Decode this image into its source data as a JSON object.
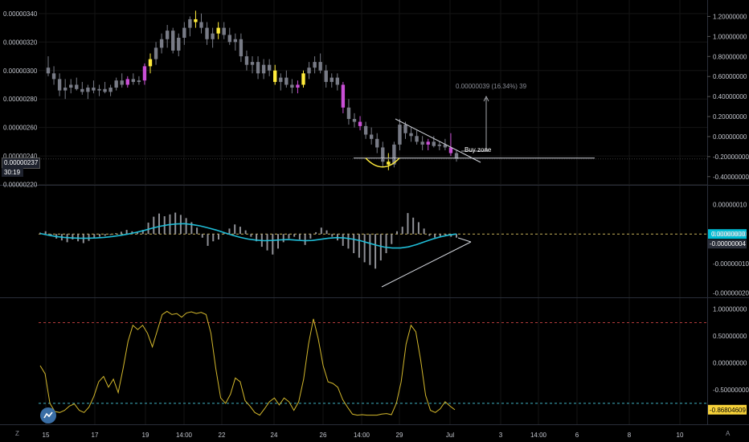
{
  "chart_data": [
    {
      "type": "candlestick",
      "title": "",
      "yticks": [
        "0.00000340",
        "0.00000320",
        "0.00000300",
        "0.00000280",
        "0.00000260",
        "0.00000240",
        "0.00000220"
      ],
      "right_yticks": [
        "1.20000000",
        "1.00000000",
        "0.80000000",
        "0.60000000",
        "0.40000000",
        "0.20000000",
        "0.00000000",
        "-0.20000000",
        "-0.40000000"
      ],
      "ylim": [
        2.22e-06,
        3.45e-06
      ],
      "last_price": "0.00000237",
      "countdown": "30:19",
      "candles": [
        {
          "o": 3.02,
          "h": 3.1,
          "l": 2.96,
          "c": 2.98
        },
        {
          "o": 2.98,
          "h": 3.03,
          "l": 2.9,
          "c": 2.94
        },
        {
          "o": 2.94,
          "h": 2.98,
          "l": 2.82,
          "c": 2.86
        },
        {
          "o": 2.86,
          "h": 2.94,
          "l": 2.8,
          "c": 2.88
        },
        {
          "o": 2.88,
          "h": 2.94,
          "l": 2.84,
          "c": 2.9
        },
        {
          "o": 2.9,
          "h": 2.95,
          "l": 2.86,
          "c": 2.87
        },
        {
          "o": 2.87,
          "h": 2.92,
          "l": 2.83,
          "c": 2.85
        },
        {
          "o": 2.85,
          "h": 2.9,
          "l": 2.8,
          "c": 2.88
        },
        {
          "o": 2.88,
          "h": 2.93,
          "l": 2.84,
          "c": 2.86
        },
        {
          "o": 2.86,
          "h": 2.9,
          "l": 2.82,
          "c": 2.87
        },
        {
          "o": 2.87,
          "h": 2.92,
          "l": 2.84,
          "c": 2.85
        },
        {
          "o": 2.85,
          "h": 2.9,
          "l": 2.82,
          "c": 2.88
        },
        {
          "o": 2.88,
          "h": 2.95,
          "l": 2.86,
          "c": 2.93
        },
        {
          "o": 2.93,
          "h": 2.98,
          "l": 2.88,
          "c": 2.9
        },
        {
          "o": 2.9,
          "h": 2.96,
          "l": 2.88,
          "c": 2.94
        },
        {
          "o": 2.94,
          "h": 2.98,
          "l": 2.9,
          "c": 2.92
        },
        {
          "o": 2.92,
          "h": 2.96,
          "l": 2.9,
          "c": 2.93
        },
        {
          "o": 2.93,
          "h": 3.05,
          "l": 2.9,
          "c": 3.03
        },
        {
          "o": 3.03,
          "h": 3.12,
          "l": 2.98,
          "c": 3.08
        },
        {
          "o": 3.08,
          "h": 3.2,
          "l": 3.04,
          "c": 3.16
        },
        {
          "o": 3.16,
          "h": 3.26,
          "l": 3.12,
          "c": 3.22
        },
        {
          "o": 3.22,
          "h": 3.32,
          "l": 3.16,
          "c": 3.28
        },
        {
          "o": 3.28,
          "h": 3.3,
          "l": 3.12,
          "c": 3.14
        },
        {
          "o": 3.14,
          "h": 3.26,
          "l": 3.1,
          "c": 3.23
        },
        {
          "o": 3.23,
          "h": 3.34,
          "l": 3.18,
          "c": 3.3
        },
        {
          "o": 3.3,
          "h": 3.38,
          "l": 3.24,
          "c": 3.36
        },
        {
          "o": 3.36,
          "h": 3.42,
          "l": 3.3,
          "c": 3.34
        },
        {
          "o": 3.34,
          "h": 3.4,
          "l": 3.26,
          "c": 3.3
        },
        {
          "o": 3.3,
          "h": 3.34,
          "l": 3.18,
          "c": 3.22
        },
        {
          "o": 3.22,
          "h": 3.3,
          "l": 3.16,
          "c": 3.26
        },
        {
          "o": 3.26,
          "h": 3.34,
          "l": 3.22,
          "c": 3.3
        },
        {
          "o": 3.3,
          "h": 3.34,
          "l": 3.22,
          "c": 3.25
        },
        {
          "o": 3.25,
          "h": 3.3,
          "l": 3.18,
          "c": 3.2
        },
        {
          "o": 3.2,
          "h": 3.26,
          "l": 3.14,
          "c": 3.22
        },
        {
          "o": 3.22,
          "h": 3.26,
          "l": 3.06,
          "c": 3.1
        },
        {
          "o": 3.1,
          "h": 3.14,
          "l": 3.0,
          "c": 3.04
        },
        {
          "o": 3.04,
          "h": 3.1,
          "l": 2.98,
          "c": 3.06
        },
        {
          "o": 3.06,
          "h": 3.1,
          "l": 2.94,
          "c": 2.98
        },
        {
          "o": 2.98,
          "h": 3.08,
          "l": 2.94,
          "c": 3.04
        },
        {
          "o": 3.04,
          "h": 3.08,
          "l": 2.96,
          "c": 3.0
        },
        {
          "o": 3.0,
          "h": 3.04,
          "l": 2.9,
          "c": 2.92
        },
        {
          "o": 2.92,
          "h": 2.98,
          "l": 2.86,
          "c": 2.95
        },
        {
          "o": 2.95,
          "h": 3.0,
          "l": 2.88,
          "c": 2.9
        },
        {
          "o": 2.9,
          "h": 2.94,
          "l": 2.84,
          "c": 2.88
        },
        {
          "o": 2.88,
          "h": 2.93,
          "l": 2.84,
          "c": 2.9
        },
        {
          "o": 2.9,
          "h": 3.0,
          "l": 2.88,
          "c": 2.98
        },
        {
          "o": 2.98,
          "h": 3.06,
          "l": 2.94,
          "c": 3.02
        },
        {
          "o": 3.02,
          "h": 3.1,
          "l": 2.98,
          "c": 3.06
        },
        {
          "o": 3.06,
          "h": 3.12,
          "l": 2.98,
          "c": 3.0
        },
        {
          "o": 3.0,
          "h": 3.04,
          "l": 2.88,
          "c": 2.92
        },
        {
          "o": 2.92,
          "h": 2.98,
          "l": 2.88,
          "c": 2.95
        },
        {
          "o": 2.95,
          "h": 2.98,
          "l": 2.86,
          "c": 2.9
        },
        {
          "o": 2.9,
          "h": 2.92,
          "l": 2.7,
          "c": 2.74
        },
        {
          "o": 2.74,
          "h": 2.8,
          "l": 2.62,
          "c": 2.66
        },
        {
          "o": 2.66,
          "h": 2.7,
          "l": 2.6,
          "c": 2.64
        },
        {
          "o": 2.64,
          "h": 2.68,
          "l": 2.58,
          "c": 2.61
        },
        {
          "o": 2.61,
          "h": 2.64,
          "l": 2.52,
          "c": 2.55
        },
        {
          "o": 2.55,
          "h": 2.6,
          "l": 2.48,
          "c": 2.52
        },
        {
          "o": 2.52,
          "h": 2.56,
          "l": 2.42,
          "c": 2.46
        },
        {
          "o": 2.46,
          "h": 2.5,
          "l": 2.32,
          "c": 2.36
        },
        {
          "o": 2.36,
          "h": 2.42,
          "l": 2.3,
          "c": 2.34
        },
        {
          "o": 2.34,
          "h": 2.5,
          "l": 2.32,
          "c": 2.48
        },
        {
          "o": 2.48,
          "h": 2.66,
          "l": 2.44,
          "c": 2.62
        },
        {
          "o": 2.62,
          "h": 2.64,
          "l": 2.52,
          "c": 2.56
        },
        {
          "o": 2.56,
          "h": 2.6,
          "l": 2.5,
          "c": 2.54
        },
        {
          "o": 2.54,
          "h": 2.58,
          "l": 2.48,
          "c": 2.5
        },
        {
          "o": 2.5,
          "h": 2.54,
          "l": 2.44,
          "c": 2.48
        },
        {
          "o": 2.48,
          "h": 2.52,
          "l": 2.44,
          "c": 2.5
        },
        {
          "o": 2.5,
          "h": 2.54,
          "l": 2.46,
          "c": 2.47
        },
        {
          "o": 2.47,
          "h": 2.5,
          "l": 2.44,
          "c": 2.48
        },
        {
          "o": 2.48,
          "h": 2.52,
          "l": 2.44,
          "c": 2.46
        },
        {
          "o": 2.46,
          "h": 2.56,
          "l": 2.4,
          "c": 2.42
        },
        {
          "o": 2.42,
          "h": 2.44,
          "l": 2.36,
          "c": 2.38
        }
      ],
      "yellow_candles": [
        18,
        26,
        30,
        40,
        45,
        60
      ],
      "magenta_candles": [
        14,
        17,
        44,
        52,
        55,
        67,
        71
      ],
      "horizontal_line": 2.385,
      "measure_label": "0.00000039 (16.34%) 39",
      "buy_zone_label": "Buy zone",
      "right_axis_ylim": [
        -0.45,
        1.3
      ]
    },
    {
      "type": "histogram+line",
      "title": "",
      "yticks": [
        "0.00000010",
        "0.00000000",
        "-0.00000010",
        "-0.00000020"
      ],
      "ylim": [
        -2.1e-07,
        1.4e-07
      ],
      "last_value_badge": "0.00000000",
      "second_value_badge": "-0.00000004",
      "badge_color": "#00bcd4",
      "histogram": [
        0.3,
        0.6,
        -0.5,
        -1.0,
        -1.4,
        -1.8,
        -1.2,
        -1.6,
        -2.0,
        -1.5,
        -0.8,
        -0.6,
        -0.4,
        -0.2,
        0.2,
        0.5,
        0.9,
        0.6,
        0.4,
        0.9,
        2.5,
        3.8,
        4.5,
        3.9,
        4.3,
        4.7,
        4.2,
        3.5,
        2.6,
        1.4,
        -0.8,
        -2.6,
        -1.6,
        -1.2,
        0.4,
        1.2,
        2.1,
        1.6,
        0.8,
        -0.6,
        -1.6,
        -2.8,
        -3.6,
        -4.5,
        -3.2,
        -1.8,
        -1.0,
        -0.6,
        -1.2,
        -2.4,
        -1.0,
        0.4,
        1.4,
        0.8,
        -0.6,
        -1.4,
        -2.6,
        -3.2,
        -4.2,
        -5.2,
        -6.2,
        -6.8,
        -7.6,
        -5.8,
        -4.2,
        -2.2,
        0.6,
        1.6,
        4.6,
        3.6,
        2.6,
        1.2,
        -0.4,
        -0.8,
        -0.5,
        -0.3,
        -0.6,
        -0.8
      ],
      "signal_line": [
        0.2,
        -0.4,
        -0.9,
        -1.2,
        -1.4,
        -1.5,
        -1.5,
        -1.4,
        -1.2,
        -0.9,
        -0.5,
        0.0,
        0.6,
        1.3,
        2.1,
        2.8,
        3.3,
        3.6,
        3.7,
        3.4,
        2.9,
        2.2,
        1.4,
        0.5,
        -0.4,
        -1.2,
        -1.8,
        -2.2,
        -2.4,
        -2.3,
        -2.1,
        -2.0,
        -2.2,
        -2.4,
        -2.3,
        -1.9,
        -1.5,
        -1.3,
        -1.4,
        -1.8,
        -2.4,
        -3.2,
        -4.0,
        -4.7,
        -5.0,
        -5.0,
        -4.6,
        -3.8,
        -2.8,
        -1.8,
        -1.0,
        -0.4,
        0.0
      ],
      "hline": 0
    },
    {
      "type": "line",
      "title": "",
      "yticks": [
        "1.00000000",
        "0.50000000",
        "0.00000000",
        "-0.50000000"
      ],
      "ylim": [
        -1.05,
        1.1
      ],
      "last_value_badge": "-0.86804609",
      "badge_color": "#f7d23a",
      "upper_level": 0.75,
      "lower_level": -0.75,
      "values": [
        -0.05,
        -0.2,
        -0.75,
        -0.9,
        -0.92,
        -0.88,
        -0.8,
        -0.76,
        -0.88,
        -0.92,
        -0.82,
        -0.62,
        -0.35,
        -0.25,
        -0.45,
        -0.3,
        -0.55,
        -0.1,
        0.4,
        0.7,
        0.62,
        0.7,
        0.55,
        0.3,
        0.6,
        0.9,
        0.96,
        0.9,
        0.92,
        0.85,
        0.93,
        0.95,
        0.92,
        0.94,
        0.9,
        0.55,
        -0.1,
        -0.65,
        -0.75,
        -0.58,
        -0.28,
        -0.35,
        -0.7,
        -0.8,
        -0.92,
        -0.97,
        -0.85,
        -0.72,
        -0.65,
        -0.78,
        -0.65,
        -0.72,
        -0.88,
        -0.72,
        -0.3,
        0.35,
        0.82,
        0.45,
        -0.05,
        -0.35,
        -0.38,
        -0.45,
        -0.68,
        -0.82,
        -0.95,
        -0.97,
        -0.96,
        -0.97,
        -0.97,
        -0.97,
        -0.95,
        -0.94,
        -0.96,
        -0.75,
        -0.35,
        0.35,
        0.7,
        0.58,
        0.05,
        -0.6,
        -0.88,
        -0.92,
        -0.85,
        -0.72,
        -0.8,
        -0.87
      ]
    }
  ],
  "x_ticks": [
    "15",
    "17",
    "19",
    "14:00",
    "22",
    "24",
    "26",
    "14:00",
    "29",
    "Jul",
    "3",
    "14:00",
    "6",
    "8",
    "10"
  ],
  "z_label": "Z",
  "a_label": "A",
  "colors": {
    "candle_gray": "#787b86",
    "yellow": "#ffeb3b",
    "magenta": "#c94fd6",
    "cyan": "#1fbcd6",
    "osc_line": "#d4b82c",
    "red_dashed": "#b23a3a",
    "cyan_dashed": "#3fb3c4",
    "white_line": "#d0d3da"
  }
}
